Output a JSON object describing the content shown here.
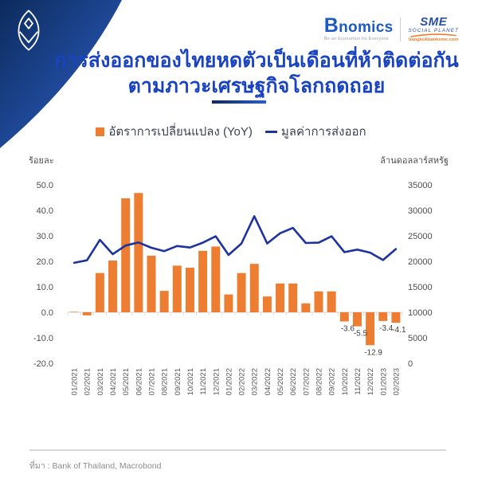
{
  "brand": {
    "bnomics": "Bnomics",
    "bnomics_tagline": "Be an Economist for Everyone",
    "sme": "SME",
    "sme_subtitle": "SOCIAL PLANET",
    "sme_url": "bangkokbanksme.com"
  },
  "header": {
    "title_line1": "การส่งออกของไทยหดตัวเป็นเดือนที่ห้าติดต่อกัน",
    "title_line2": "ตามภาวะเศรษฐกิจโลกถดถอย"
  },
  "footer": {
    "source": "ที่มา : Bank of Thailand, Macrobond"
  },
  "colors": {
    "header_navy": "#0c2a5c",
    "header_blue": "#2f63cc",
    "title_blue": "#1a43c0",
    "bar_orange": "#ED7D31",
    "line_blue": "#1e339e",
    "bnomics_blue": "#1d5bbf",
    "sme_blue": "#2b4fa2",
    "url_orange": "#f07f2d",
    "tick_gray": "#4d4d4d",
    "xlabel_gray": "#595959",
    "source_gray": "#8c8c8c"
  },
  "chart_data": {
    "type": "bar+line",
    "title": "การส่งออกของไทยหดตัวเป็นเดือนที่ห้าติดต่อกัน ตามภาวะเศรษฐกิจโลกถดถอย",
    "legend_position": "top-center",
    "grid": false,
    "categories": [
      "01/2021",
      "02/2021",
      "03/2021",
      "04/2021",
      "05/2021",
      "06/2021",
      "07/2021",
      "08/2021",
      "09/2021",
      "10/2021",
      "11/2021",
      "12/2021",
      "01/2022",
      "02/2022",
      "03/2022",
      "04/2022",
      "05/2022",
      "06/2022",
      "07/2022",
      "08/2022",
      "09/2022",
      "10/2022",
      "11/2022",
      "12/2022",
      "01/2023",
      "02/2023"
    ],
    "series": [
      {
        "name": "อัตราการเปลี่ยนแปลง (YoY)",
        "type": "bar",
        "axis": "left",
        "color": "#ED7D31",
        "values": [
          0.2,
          -1.2,
          15.4,
          20.3,
          44.7,
          46.8,
          22.2,
          8.4,
          18.3,
          17.5,
          24.1,
          25.8,
          7.0,
          15.4,
          19.0,
          6.2,
          11.3,
          11.3,
          3.5,
          8.2,
          8.2,
          -3.6,
          -5.5,
          -12.9,
          -3.4,
          -4.1
        ]
      },
      {
        "name": "มูลค่าการส่งออก",
        "type": "line",
        "axis": "right",
        "color": "#1e339e",
        "values": [
          19700,
          20200,
          24200,
          21400,
          23100,
          23700,
          22650,
          22000,
          23000,
          22700,
          23650,
          24900,
          21250,
          23500,
          28850,
          23500,
          25500,
          26550,
          23600,
          23650,
          24900,
          21800,
          22300,
          21700,
          20250,
          22400
        ]
      }
    ],
    "value_labels": [
      null,
      null,
      null,
      null,
      null,
      null,
      null,
      null,
      null,
      null,
      null,
      null,
      null,
      null,
      null,
      null,
      null,
      null,
      null,
      null,
      null,
      "-3.6",
      "-5.5",
      "-12.9",
      "-3.4",
      "-4.1"
    ],
    "left_axis": {
      "title": "ร้อยละ",
      "min": -20,
      "max": 50,
      "step": 10,
      "ticks": [
        "50.0",
        "40.0",
        "30.0",
        "20.0",
        "10.0",
        "0.0",
        "-10.0",
        "-20.0"
      ]
    },
    "right_axis": {
      "title": "ล้านดอลลาร์สหรัฐ",
      "min": 0,
      "max": 35000,
      "step": 5000,
      "ticks": [
        "35000",
        "30000",
        "25000",
        "20000",
        "15000",
        "10000",
        "5000",
        "0"
      ]
    }
  }
}
